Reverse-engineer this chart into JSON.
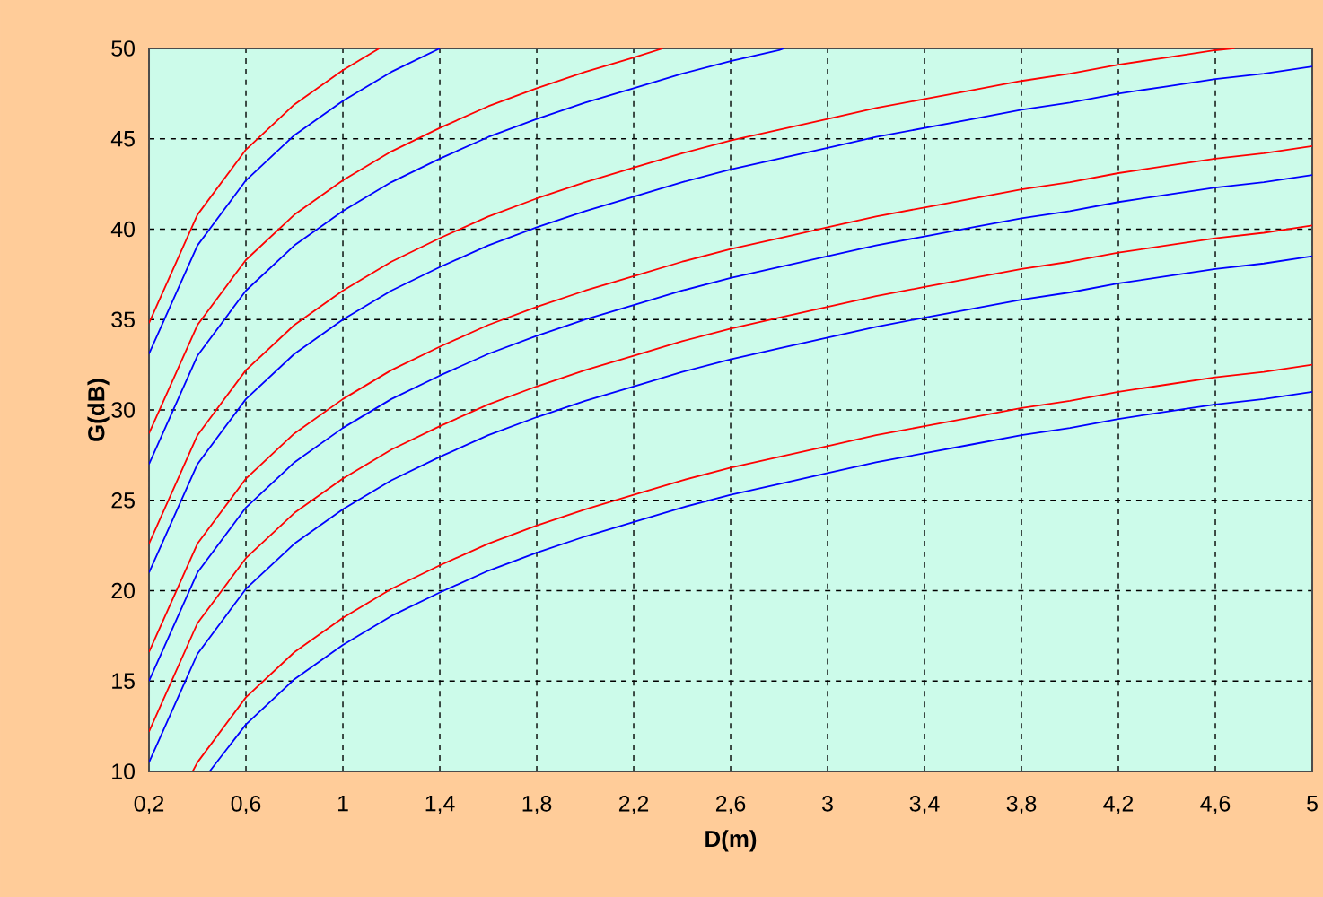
{
  "chart_data": {
    "type": "line",
    "xlabel": "D(m)",
    "ylabel": "G(dB)",
    "xlim": [
      0.2,
      5
    ],
    "ylim": [
      10,
      50
    ],
    "xticks": [
      {
        "value": 0.2,
        "label": "0,2"
      },
      {
        "value": 0.6,
        "label": "0,6"
      },
      1,
      {
        "value": 1.4,
        "label": "1,4"
      },
      {
        "value": 1.8,
        "label": "1,8"
      },
      {
        "value": 2.2,
        "label": "2,2"
      },
      {
        "value": 2.6,
        "label": "2,6"
      },
      3,
      {
        "value": 3.4,
        "label": "3,4"
      },
      {
        "value": 3.8,
        "label": "3,8"
      },
      {
        "value": 4.2,
        "label": "4,2"
      },
      {
        "value": 4.6,
        "label": "4,6"
      },
      5
    ],
    "yticks": [
      10,
      15,
      20,
      25,
      30,
      35,
      40,
      45,
      50
    ],
    "grid": true,
    "marker": "none",
    "line_style": "solid",
    "series": [
      {
        "color": "#ff0000",
        "x": [
          0.2,
          0.4,
          0.6,
          0.8,
          1.0,
          1.15
        ],
        "values": [
          34.8,
          40.8,
          44.4,
          46.9,
          48.8,
          50
        ]
      },
      {
        "color": "#0000ff",
        "x": [
          0.2,
          0.4,
          0.6,
          0.8,
          1.0,
          1.2,
          1.4
        ],
        "values": [
          33.1,
          39.1,
          42.7,
          45.2,
          47.1,
          48.7,
          50.0
        ]
      },
      {
        "color": "#ff0000",
        "x": [
          0.2,
          0.4,
          0.6,
          0.8,
          1.0,
          1.2,
          1.4,
          1.6,
          1.8,
          2.0,
          2.2,
          2.32
        ],
        "values": [
          28.7,
          34.7,
          38.3,
          40.8,
          42.7,
          44.3,
          45.6,
          46.8,
          47.8,
          48.7,
          49.5,
          50
        ]
      },
      {
        "color": "#0000ff",
        "x": [
          0.2,
          0.4,
          0.6,
          0.8,
          1.0,
          1.2,
          1.4,
          1.6,
          1.8,
          2.0,
          2.2,
          2.4,
          2.6,
          2.8,
          2.82
        ],
        "values": [
          27.0,
          33.0,
          36.6,
          39.1,
          41.0,
          42.6,
          43.9,
          45.1,
          46.1,
          47.0,
          47.8,
          48.6,
          49.3,
          49.9,
          50
        ]
      },
      {
        "color": "#ff0000",
        "x": [
          0.2,
          0.4,
          0.6,
          0.8,
          1.0,
          1.2,
          1.4,
          1.6,
          1.8,
          2.0,
          2.2,
          2.4,
          2.6,
          2.8,
          3.0,
          3.2,
          3.4,
          3.6,
          3.8,
          4.0,
          4.2,
          4.4,
          4.6,
          4.68
        ],
        "values": [
          22.6,
          28.6,
          32.2,
          34.7,
          36.6,
          38.2,
          39.5,
          40.7,
          41.7,
          42.6,
          43.4,
          44.2,
          44.9,
          45.5,
          46.1,
          46.7,
          47.2,
          47.7,
          48.2,
          48.6,
          49.1,
          49.5,
          49.9,
          50
        ]
      },
      {
        "color": "#0000ff",
        "x": [
          0.2,
          0.4,
          0.6,
          0.8,
          1.0,
          1.2,
          1.4,
          1.6,
          1.8,
          2.0,
          2.2,
          2.4,
          2.6,
          2.8,
          3.0,
          3.2,
          3.4,
          3.6,
          3.8,
          4.0,
          4.2,
          4.4,
          4.6,
          4.8,
          5.0
        ],
        "values": [
          21.0,
          27.0,
          30.6,
          33.1,
          35.0,
          36.6,
          37.9,
          39.1,
          40.1,
          41.0,
          41.8,
          42.6,
          43.3,
          43.9,
          44.5,
          45.1,
          45.6,
          46.1,
          46.6,
          47.0,
          47.5,
          47.9,
          48.3,
          48.6,
          49.0
        ]
      },
      {
        "color": "#ff0000",
        "x": [
          0.2,
          0.4,
          0.6,
          0.8,
          1.0,
          1.2,
          1.4,
          1.6,
          1.8,
          2.0,
          2.2,
          2.4,
          2.6,
          2.8,
          3.0,
          3.2,
          3.4,
          3.6,
          3.8,
          4.0,
          4.2,
          4.4,
          4.6,
          4.8,
          5.0
        ],
        "values": [
          16.6,
          22.6,
          26.2,
          28.7,
          30.6,
          32.2,
          33.5,
          34.7,
          35.7,
          36.6,
          37.4,
          38.2,
          38.9,
          39.5,
          40.1,
          40.7,
          41.2,
          41.7,
          42.2,
          42.6,
          43.1,
          43.5,
          43.9,
          44.2,
          44.6
        ]
      },
      {
        "color": "#0000ff",
        "x": [
          0.2,
          0.4,
          0.6,
          0.8,
          1.0,
          1.2,
          1.4,
          1.6,
          1.8,
          2.0,
          2.2,
          2.4,
          2.6,
          2.8,
          3.0,
          3.2,
          3.4,
          3.6,
          3.8,
          4.0,
          4.2,
          4.4,
          4.6,
          4.8,
          5.0
        ],
        "values": [
          15.0,
          21.0,
          24.6,
          27.1,
          29.0,
          30.6,
          31.9,
          33.1,
          34.1,
          35.0,
          35.8,
          36.6,
          37.3,
          37.9,
          38.5,
          39.1,
          39.6,
          40.1,
          40.6,
          41.0,
          41.5,
          41.9,
          42.3,
          42.6,
          43.0
        ]
      },
      {
        "color": "#ff0000",
        "x": [
          0.2,
          0.4,
          0.6,
          0.8,
          1.0,
          1.2,
          1.4,
          1.6,
          1.8,
          2.0,
          2.2,
          2.4,
          2.6,
          2.8,
          3.0,
          3.2,
          3.4,
          3.6,
          3.8,
          4.0,
          4.2,
          4.4,
          4.6,
          4.8,
          5.0
        ],
        "values": [
          12.2,
          18.2,
          21.8,
          24.3,
          26.2,
          27.8,
          29.1,
          30.3,
          31.3,
          32.2,
          33.0,
          33.8,
          34.5,
          35.1,
          35.7,
          36.3,
          36.8,
          37.3,
          37.8,
          38.2,
          38.7,
          39.1,
          39.5,
          39.8,
          40.2
        ]
      },
      {
        "color": "#0000ff",
        "x": [
          0.2,
          0.4,
          0.6,
          0.8,
          1.0,
          1.2,
          1.4,
          1.6,
          1.8,
          2.0,
          2.2,
          2.4,
          2.6,
          2.8,
          3.0,
          3.2,
          3.4,
          3.6,
          3.8,
          4.0,
          4.2,
          4.4,
          4.6,
          4.8,
          5.0
        ],
        "values": [
          10.5,
          16.5,
          20.1,
          22.6,
          24.5,
          26.1,
          27.4,
          28.6,
          29.6,
          30.5,
          31.3,
          32.1,
          32.8,
          33.4,
          34.0,
          34.6,
          35.1,
          35.6,
          36.1,
          36.5,
          37.0,
          37.4,
          37.8,
          38.1,
          38.5
        ]
      },
      {
        "color": "#ff0000",
        "x": [
          0.38,
          0.4,
          0.6,
          0.8,
          1.0,
          1.2,
          1.4,
          1.6,
          1.8,
          2.0,
          2.2,
          2.4,
          2.6,
          2.8,
          3.0,
          3.2,
          3.4,
          3.6,
          3.8,
          4.0,
          4.2,
          4.4,
          4.6,
          4.8,
          5.0
        ],
        "values": [
          10,
          10.5,
          14.1,
          16.6,
          18.5,
          20.1,
          21.4,
          22.6,
          23.6,
          24.5,
          25.3,
          26.1,
          26.8,
          27.4,
          28.0,
          28.6,
          29.1,
          29.6,
          30.1,
          30.5,
          31.0,
          31.4,
          31.8,
          32.1,
          32.5
        ]
      },
      {
        "color": "#0000ff",
        "x": [
          0.45,
          0.6,
          0.8,
          1.0,
          1.2,
          1.4,
          1.6,
          1.8,
          2.0,
          2.2,
          2.4,
          2.6,
          2.8,
          3.0,
          3.2,
          3.4,
          3.6,
          3.8,
          4.0,
          4.2,
          4.4,
          4.6,
          4.8,
          5.0
        ],
        "values": [
          10,
          12.6,
          15.1,
          17.0,
          18.6,
          19.9,
          21.1,
          22.1,
          23.0,
          23.8,
          24.6,
          25.3,
          25.9,
          26.5,
          27.1,
          27.6,
          28.1,
          28.6,
          29.0,
          29.5,
          29.9,
          30.3,
          30.6,
          31.0
        ]
      }
    ]
  }
}
